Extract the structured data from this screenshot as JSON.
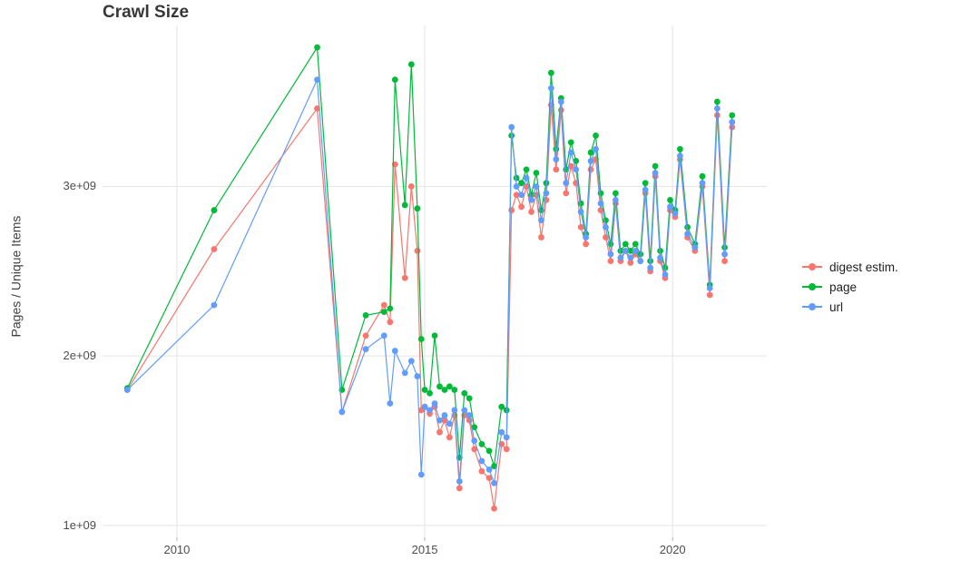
{
  "chart": {
    "title": "Crawl Size",
    "ylabel": "Pages / Unique Items",
    "background": "#FFFFFF",
    "grid_color": "#E8E8E8",
    "tick_mark_color": "#B3B3B3",
    "axis_text_color": "#4D4D4D",
    "title_color": "#383838",
    "legend": {
      "position": "right",
      "items": [
        "digest estim.",
        "page",
        "url"
      ]
    }
  },
  "chart_data": {
    "type": "line",
    "title": "Crawl Size",
    "xlabel": "",
    "ylabel": "Pages / Unique Items",
    "xlim": [
      2008.5,
      2021.9
    ],
    "ylim": [
      930000000.0,
      3950000000.0
    ],
    "grid": true,
    "legend_position": "right",
    "xticks": [
      {
        "value": 2010,
        "label": "2010"
      },
      {
        "value": 2015,
        "label": "2015"
      },
      {
        "value": 2020,
        "label": "2020"
      }
    ],
    "yticks": [
      {
        "value": 1000000000.0,
        "label": "1e+09"
      },
      {
        "value": 2000000000.0,
        "label": "2e+09"
      },
      {
        "value": 3000000000.0,
        "label": "3e+09"
      }
    ],
    "x": [
      2009.0,
      2010.75,
      2012.83,
      2013.33,
      2013.81,
      2014.18,
      2014.3,
      2014.4,
      2014.6,
      2014.73,
      2014.85,
      2014.93,
      2015.0,
      2015.1,
      2015.2,
      2015.3,
      2015.4,
      2015.5,
      2015.6,
      2015.7,
      2015.8,
      2015.9,
      2016.0,
      2016.15,
      2016.3,
      2016.4,
      2016.55,
      2016.65,
      2016.75,
      2016.85,
      2016.95,
      2017.05,
      2017.15,
      2017.25,
      2017.35,
      2017.45,
      2017.55,
      2017.65,
      2017.75,
      2017.85,
      2017.95,
      2018.05,
      2018.15,
      2018.25,
      2018.35,
      2018.45,
      2018.55,
      2018.65,
      2018.75,
      2018.85,
      2018.95,
      2019.05,
      2019.15,
      2019.25,
      2019.35,
      2019.45,
      2019.55,
      2019.65,
      2019.75,
      2019.85,
      2019.95,
      2020.05,
      2020.15,
      2020.3,
      2020.45,
      2020.6,
      2020.75,
      2020.9,
      2021.05,
      2021.2
    ],
    "series": [
      {
        "key": "digest",
        "name": "digest estim.",
        "color": "#F8766D",
        "values": [
          1800000000.0,
          2630000000.0,
          3460000000.0,
          1670000000.0,
          2120000000.0,
          2300000000.0,
          2200000000.0,
          3130000000.0,
          2460000000.0,
          3000000000.0,
          2620000000.0,
          1680000000.0,
          1700000000.0,
          1660000000.0,
          1700000000.0,
          1550000000.0,
          1620000000.0,
          1520000000.0,
          1650000000.0,
          1220000000.0,
          1650000000.0,
          1620000000.0,
          1450000000.0,
          1320000000.0,
          1280000000.0,
          1100000000.0,
          1480000000.0,
          1450000000.0,
          2860000000.0,
          2950000000.0,
          2880000000.0,
          3000000000.0,
          2850000000.0,
          2950000000.0,
          2700000000.0,
          2920000000.0,
          3480000000.0,
          3100000000.0,
          3450000000.0,
          2960000000.0,
          3120000000.0,
          3020000000.0,
          2760000000.0,
          2660000000.0,
          3100000000.0,
          3160000000.0,
          2860000000.0,
          2700000000.0,
          2560000000.0,
          2900000000.0,
          2560000000.0,
          2620000000.0,
          2550000000.0,
          2600000000.0,
          2560000000.0,
          2960000000.0,
          2500000000.0,
          3060000000.0,
          2560000000.0,
          2460000000.0,
          2860000000.0,
          2820000000.0,
          3160000000.0,
          2700000000.0,
          2620000000.0,
          3000000000.0,
          2360000000.0,
          3420000000.0,
          2560000000.0,
          3350000000.0
        ]
      },
      {
        "key": "page",
        "name": "page",
        "color": "#00BA38",
        "values": [
          1810000000.0,
          2860000000.0,
          3820000000.0,
          1800000000.0,
          2240000000.0,
          2260000000.0,
          2280000000.0,
          3630000000.0,
          2890000000.0,
          3720000000.0,
          2870000000.0,
          2100000000.0,
          1800000000.0,
          1780000000.0,
          2120000000.0,
          1820000000.0,
          1800000000.0,
          1820000000.0,
          1800000000.0,
          1400000000.0,
          1780000000.0,
          1750000000.0,
          1580000000.0,
          1480000000.0,
          1440000000.0,
          1350000000.0,
          1700000000.0,
          1680000000.0,
          3300000000.0,
          3050000000.0,
          3020000000.0,
          3100000000.0,
          2950000000.0,
          3080000000.0,
          2860000000.0,
          3020000000.0,
          3670000000.0,
          3220000000.0,
          3520000000.0,
          3100000000.0,
          3260000000.0,
          3150000000.0,
          2900000000.0,
          2720000000.0,
          3200000000.0,
          3300000000.0,
          2960000000.0,
          2800000000.0,
          2660000000.0,
          2960000000.0,
          2620000000.0,
          2660000000.0,
          2620000000.0,
          2660000000.0,
          2600000000.0,
          3020000000.0,
          2560000000.0,
          3120000000.0,
          2620000000.0,
          2520000000.0,
          2920000000.0,
          2860000000.0,
          3220000000.0,
          2760000000.0,
          2660000000.0,
          3060000000.0,
          2420000000.0,
          3500000000.0,
          2640000000.0,
          3420000000.0
        ]
      },
      {
        "key": "url",
        "name": "url",
        "color": "#619CFF",
        "values": [
          1800000000.0,
          2300000000.0,
          3630000000.0,
          1670000000.0,
          2040000000.0,
          2120000000.0,
          1720000000.0,
          2030000000.0,
          1900000000.0,
          1970000000.0,
          1880000000.0,
          1300000000.0,
          1700000000.0,
          1680000000.0,
          1720000000.0,
          1620000000.0,
          1650000000.0,
          1600000000.0,
          1680000000.0,
          1260000000.0,
          1680000000.0,
          1650000000.0,
          1500000000.0,
          1380000000.0,
          1330000000.0,
          1250000000.0,
          1550000000.0,
          1520000000.0,
          3350000000.0,
          3000000000.0,
          2950000000.0,
          3050000000.0,
          2920000000.0,
          3000000000.0,
          2800000000.0,
          2960000000.0,
          3580000000.0,
          3160000000.0,
          3500000000.0,
          3020000000.0,
          3200000000.0,
          3100000000.0,
          2850000000.0,
          2700000000.0,
          3150000000.0,
          3220000000.0,
          2900000000.0,
          2760000000.0,
          2600000000.0,
          2920000000.0,
          2580000000.0,
          2620000000.0,
          2580000000.0,
          2620000000.0,
          2560000000.0,
          2980000000.0,
          2520000000.0,
          3080000000.0,
          2580000000.0,
          2480000000.0,
          2880000000.0,
          2840000000.0,
          3180000000.0,
          2720000000.0,
          2640000000.0,
          3020000000.0,
          2400000000.0,
          3460000000.0,
          2600000000.0,
          3380000000.0
        ]
      }
    ]
  }
}
